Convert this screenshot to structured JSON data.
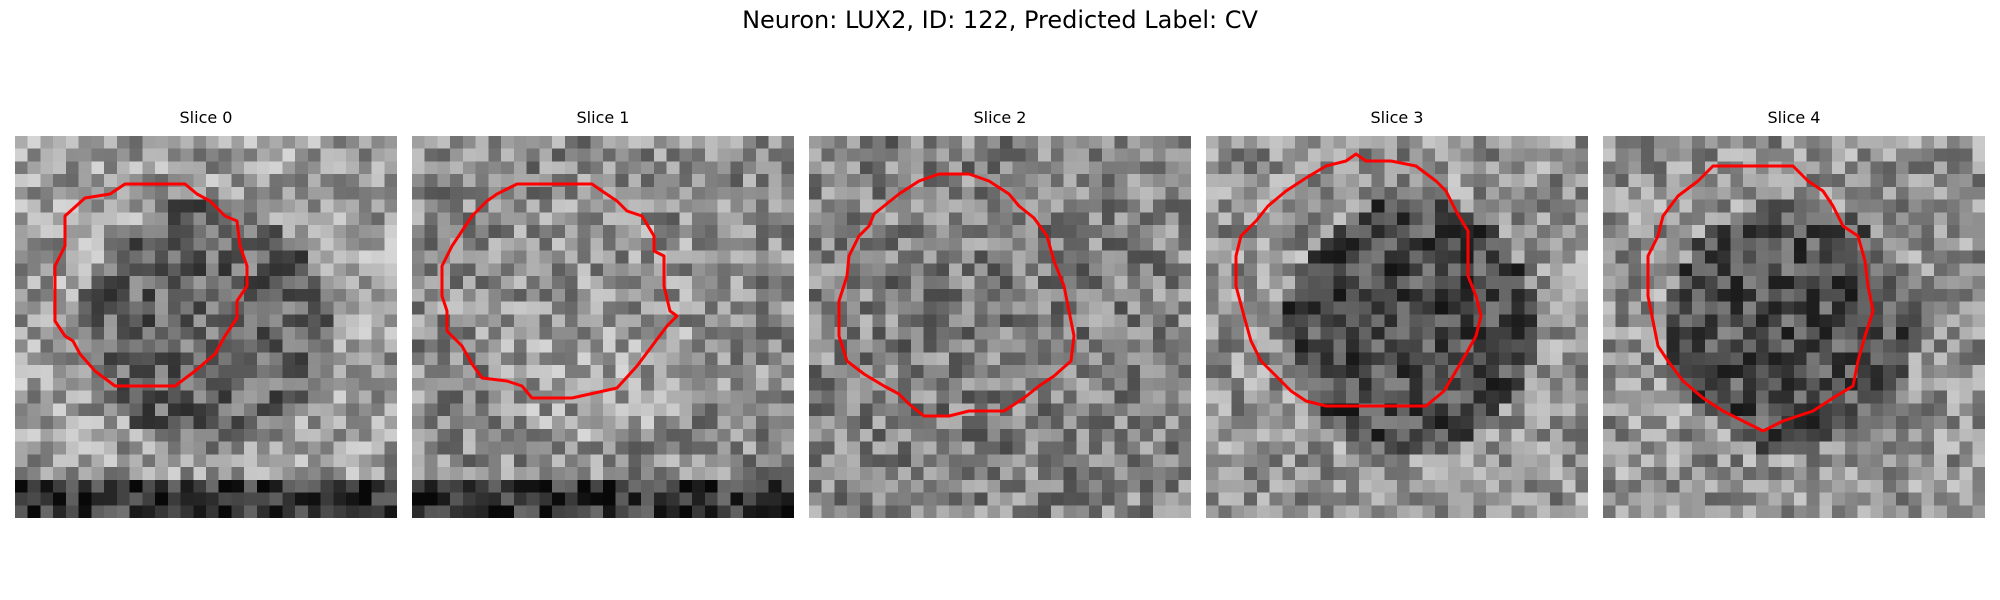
{
  "figure": {
    "title": "Neuron: LUX2, ID: 122, Predicted Label: CV"
  },
  "panels": [
    {
      "title": "Slice 0",
      "contour_color": "#ff0000"
    },
    {
      "title": "Slice 1",
      "contour_color": "#ff0000"
    },
    {
      "title": "Slice 2",
      "contour_color": "#ff0000"
    },
    {
      "title": "Slice 3",
      "contour_color": "#ff0000"
    },
    {
      "title": "Slice 4",
      "contour_color": "#ff0000"
    }
  ]
}
